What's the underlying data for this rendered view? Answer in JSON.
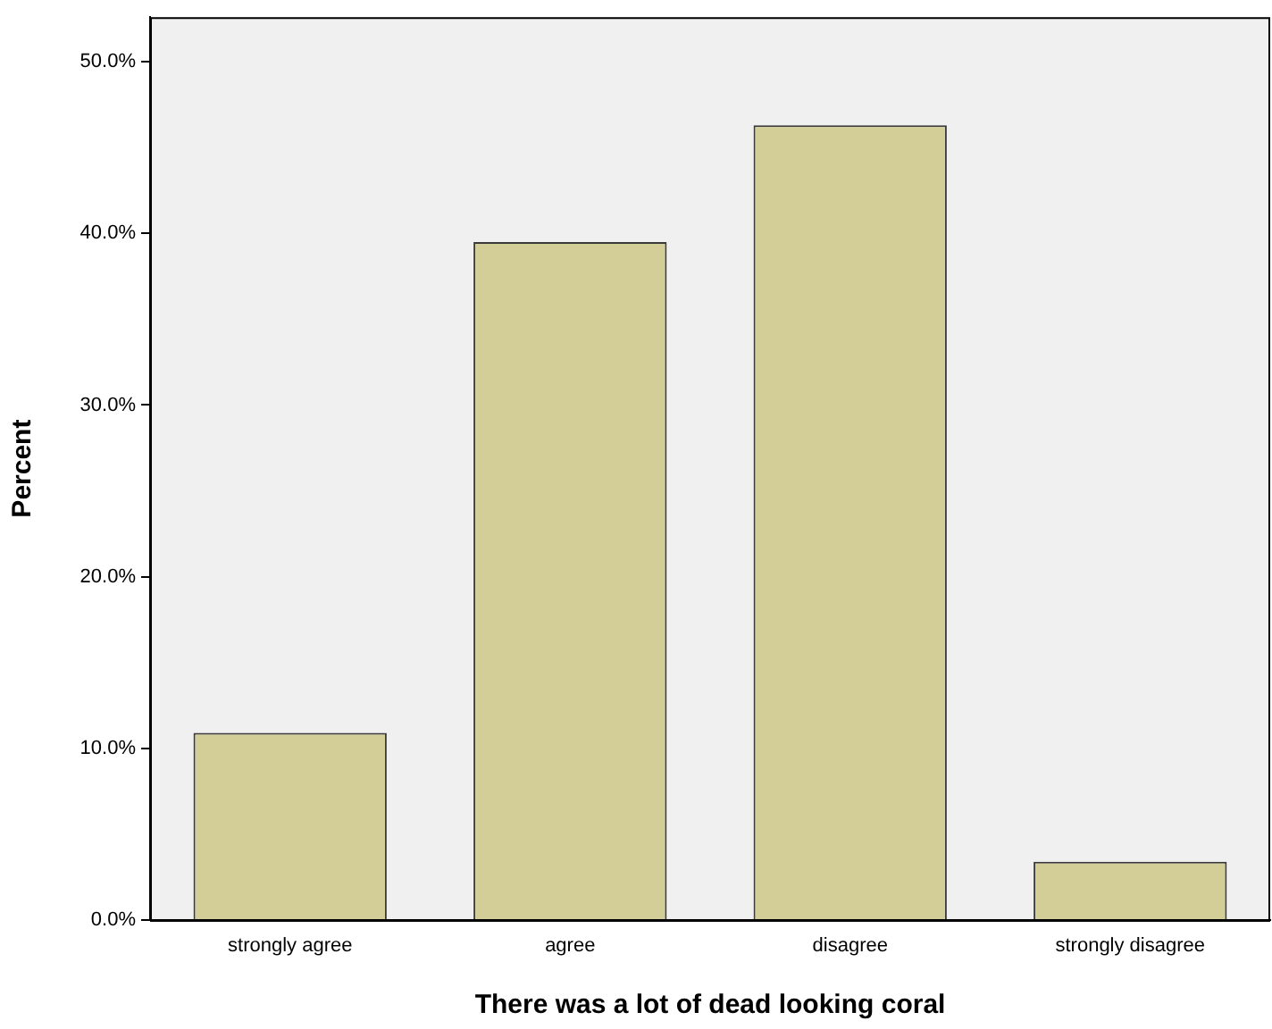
{
  "chart_data": {
    "type": "bar",
    "xlabel": "There was a lot of dead looking coral",
    "ylabel": "Percent",
    "categories": [
      "strongly agree",
      "agree",
      "disagree",
      "strongly disagree"
    ],
    "values": [
      10.9,
      39.5,
      46.3,
      3.4
    ],
    "color": "#d3ce97",
    "ylim": [
      0,
      52.6
    ],
    "yticks": [
      {
        "value": 0,
        "label": "0.0%"
      },
      {
        "value": 10,
        "label": "10.0%"
      },
      {
        "value": 20,
        "label": "20.0%"
      },
      {
        "value": 30,
        "label": "30.0%"
      },
      {
        "value": 40,
        "label": "40.0%"
      },
      {
        "value": 50,
        "label": "50.0%"
      }
    ],
    "grid": false,
    "legend": false
  }
}
